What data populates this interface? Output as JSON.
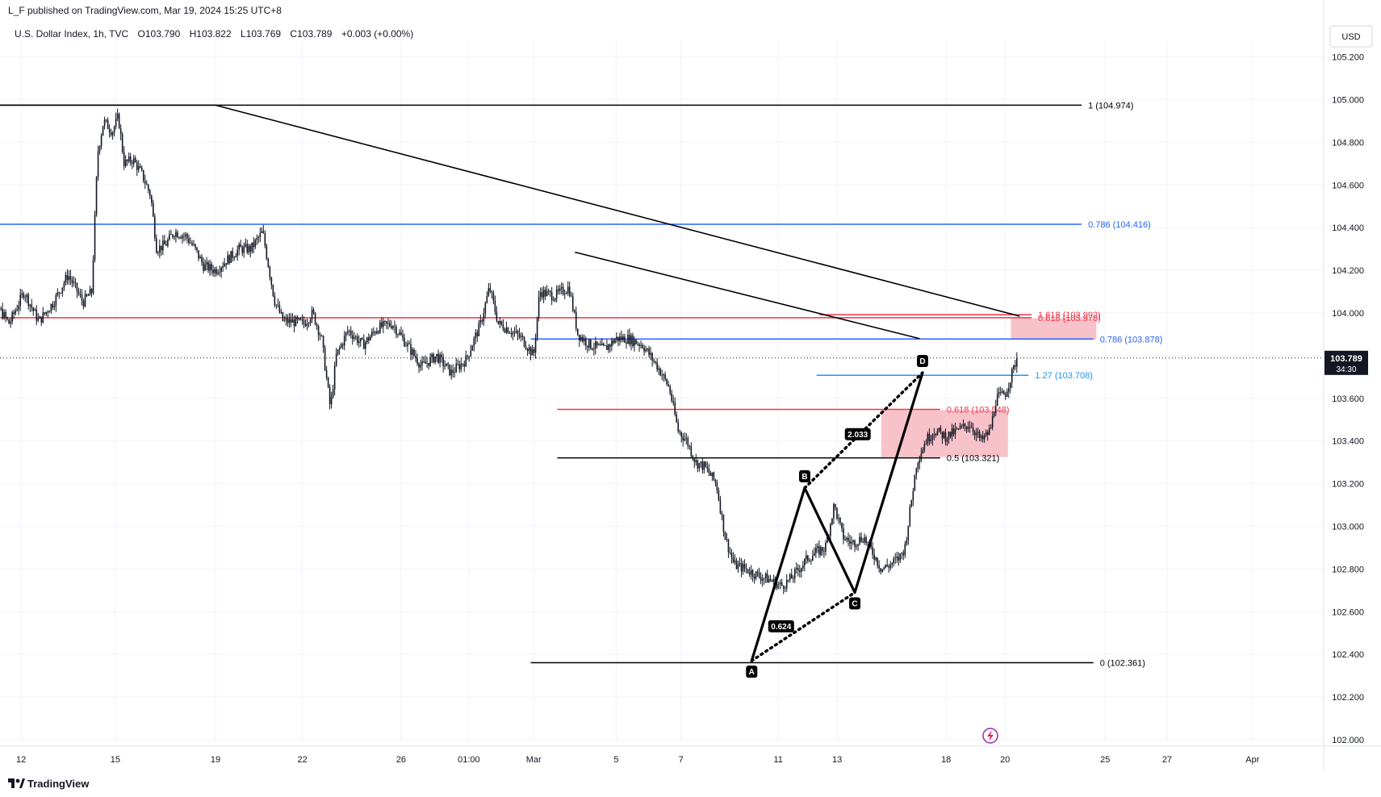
{
  "header": {
    "published_by": "L_F published on TradingView.com, Mar 19, 2024 15:25 UTC+8",
    "symbol_line": "U.S. Dollar Index, 1h, TVC",
    "ohlc": {
      "open_label": "O",
      "open": "103.790",
      "high_label": "H",
      "high": "103.822",
      "low_label": "L",
      "low": "103.769",
      "close_label": "C",
      "close": "103.789",
      "change": "+0.003 (+0.00%)"
    }
  },
  "currency_button": "USD",
  "footer": {
    "brand": "TradingView"
  },
  "colors": {
    "black_line": "#000000",
    "blue_line": "#2962ff",
    "light_blue_line": "#2196f3",
    "red_line": "#f23645",
    "zone_fill": "#f7b7c2",
    "candle": "#131722",
    "grid": "#f0f3fa"
  },
  "chart_data": {
    "type": "candlestick",
    "ylim": [
      101.95,
      105.25
    ],
    "y_ticks": [
      "105.200",
      "105.000",
      "104.800",
      "104.600",
      "104.400",
      "104.200",
      "104.000",
      "103.800",
      "103.600",
      "103.400",
      "103.200",
      "103.000",
      "102.800",
      "102.600",
      "102.400",
      "102.200",
      "102.000"
    ],
    "x_ticks": [
      "12",
      "15",
      "19",
      "22",
      "26",
      "01:00",
      "Mar",
      "5",
      "7",
      "11",
      "13",
      "18",
      "20",
      "25",
      "27",
      "Apr"
    ],
    "x_tick_days": [
      -6.6,
      -3.4,
      0,
      2.95,
      6.3,
      8.6,
      10.8,
      13.6,
      15.8,
      19.1,
      21.1,
      24.8,
      26.8,
      30.2,
      32.3,
      35.2
    ],
    "last_price": "103.789",
    "countdown": "34:30",
    "price_path": [
      [
        -8.0,
        104.2
      ],
      [
        -7.5,
        104.05
      ],
      [
        -7.0,
        103.95
      ],
      [
        -6.5,
        104.1
      ],
      [
        -6.0,
        103.96
      ],
      [
        -5.5,
        104.05
      ],
      [
        -5.0,
        104.18
      ],
      [
        -4.5,
        104.05
      ],
      [
        -4.2,
        104.1
      ],
      [
        -4.0,
        104.75
      ],
      [
        -3.8,
        104.9
      ],
      [
        -3.5,
        104.85
      ],
      [
        -3.3,
        104.92
      ],
      [
        -3.1,
        104.7
      ],
      [
        -2.8,
        104.72
      ],
      [
        -2.5,
        104.65
      ],
      [
        -2.2,
        104.55
      ],
      [
        -2.0,
        104.3
      ],
      [
        -1.7,
        104.32
      ],
      [
        -1.4,
        104.38
      ],
      [
        -1.0,
        104.36
      ],
      [
        -0.7,
        104.3
      ],
      [
        -0.4,
        104.22
      ],
      [
        0.0,
        104.2
      ],
      [
        0.4,
        104.25
      ],
      [
        0.8,
        104.3
      ],
      [
        1.2,
        104.3
      ],
      [
        1.6,
        104.38
      ],
      [
        2.0,
        104.06
      ],
      [
        2.3,
        103.96
      ],
      [
        2.6,
        103.96
      ],
      [
        3.0,
        103.95
      ],
      [
        3.3,
        104.0
      ],
      [
        3.6,
        103.88
      ],
      [
        3.9,
        103.55
      ],
      [
        4.1,
        103.8
      ],
      [
        4.5,
        103.92
      ],
      [
        5.0,
        103.85
      ],
      [
        5.5,
        103.93
      ],
      [
        6.0,
        103.95
      ],
      [
        6.5,
        103.85
      ],
      [
        7.0,
        103.75
      ],
      [
        7.5,
        103.8
      ],
      [
        8.0,
        103.72
      ],
      [
        8.5,
        103.78
      ],
      [
        9.0,
        103.95
      ],
      [
        9.3,
        104.12
      ],
      [
        9.6,
        103.95
      ],
      [
        10.0,
        103.92
      ],
      [
        10.4,
        103.88
      ],
      [
        10.8,
        103.8
      ],
      [
        11.0,
        104.1
      ],
      [
        11.5,
        104.08
      ],
      [
        12.0,
        104.12
      ],
      [
        12.3,
        103.9
      ],
      [
        12.7,
        103.85
      ],
      [
        13.2,
        103.83
      ],
      [
        13.6,
        103.88
      ],
      [
        14.0,
        103.88
      ],
      [
        14.5,
        103.85
      ],
      [
        15.0,
        103.75
      ],
      [
        15.4,
        103.65
      ],
      [
        15.7,
        103.45
      ],
      [
        16.0,
        103.4
      ],
      [
        16.3,
        103.3
      ],
      [
        16.6,
        103.28
      ],
      [
        17.0,
        103.2
      ],
      [
        17.3,
        102.95
      ],
      [
        17.6,
        102.82
      ],
      [
        18.0,
        102.8
      ],
      [
        18.4,
        102.77
      ],
      [
        18.8,
        102.75
      ],
      [
        19.2,
        102.72
      ],
      [
        19.5,
        102.75
      ],
      [
        19.8,
        102.8
      ],
      [
        20.1,
        102.85
      ],
      [
        20.4,
        102.88
      ],
      [
        20.7,
        102.9
      ],
      [
        21.0,
        103.1
      ],
      [
        21.3,
        102.95
      ],
      [
        21.6,
        102.92
      ],
      [
        22.0,
        102.95
      ],
      [
        22.3,
        102.88
      ],
      [
        22.6,
        102.8
      ],
      [
        22.9,
        102.82
      ],
      [
        23.2,
        102.85
      ],
      [
        23.4,
        102.9
      ],
      [
        23.6,
        103.1
      ],
      [
        23.8,
        103.3
      ],
      [
        24.1,
        103.4
      ],
      [
        24.4,
        103.45
      ],
      [
        24.8,
        103.42
      ],
      [
        25.2,
        103.45
      ],
      [
        25.6,
        103.48
      ],
      [
        26.0,
        103.4
      ],
      [
        26.3,
        103.45
      ],
      [
        26.5,
        103.6
      ],
      [
        26.8,
        103.62
      ],
      [
        27.0,
        103.7
      ],
      [
        27.2,
        103.79
      ]
    ],
    "levels": [
      {
        "label": "1 (104.974)",
        "price": 104.974,
        "x_start": -8.6,
        "x_end": 29.4,
        "color": "black"
      },
      {
        "label": "0.786 (104.416)",
        "price": 104.416,
        "x_start": -8.6,
        "x_end": 29.4,
        "color": "blue"
      },
      {
        "label": "0 (102.361)",
        "price": 102.361,
        "x_start": 10.7,
        "x_end": 29.8,
        "color": "black"
      },
      {
        "label": "0.786 (103.878)",
        "price": 103.878,
        "x_start": 10.7,
        "x_end": 29.8,
        "color": "blue"
      },
      {
        "label": "0.618 (103.548)",
        "price": 103.548,
        "x_start": 11.6,
        "x_end": 24.6,
        "color": "red"
      },
      {
        "label": "0.5 (103.321)",
        "price": 103.321,
        "x_start": 11.6,
        "x_end": 24.6,
        "color": "black"
      },
      {
        "label": "1.27 (103.708)",
        "price": 103.708,
        "x_start": 20.4,
        "x_end": 27.6,
        "color": "lightblue"
      },
      {
        "label": "1.618 (103.992)",
        "price": 103.992,
        "x_start": 20.5,
        "x_end": 27.7,
        "color": "red"
      },
      {
        "label": "0.618 (103.978)",
        "price": 103.978,
        "x_start": -8.6,
        "x_end": 27.7,
        "color": "red"
      }
    ],
    "bottom_line_price": 101.97,
    "trendlines": [
      {
        "from": [
          -8.6,
          104.974
        ],
        "to": [
          0.0,
          104.974
        ]
      },
      {
        "from": [
          0.0,
          104.974
        ],
        "to": [
          27.3,
          103.985
        ]
      },
      {
        "from": [
          12.2,
          104.285
        ],
        "to": [
          23.9,
          103.88
        ]
      }
    ],
    "zones": [
      {
        "x_start": 27.0,
        "x_end": 29.9,
        "y_top": 103.975,
        "y_bottom": 103.875
      },
      {
        "x_start": 22.6,
        "x_end": 26.9,
        "y_top": 103.545,
        "y_bottom": 103.325
      }
    ],
    "pattern": {
      "points": [
        {
          "label": "A",
          "x": 18.2,
          "y": 102.37
        },
        {
          "label": "B",
          "x": 20.0,
          "y": 103.18
        },
        {
          "label": "C",
          "x": 21.7,
          "y": 102.69
        },
        {
          "label": "D",
          "x": 24.0,
          "y": 103.72
        }
      ],
      "ratios": [
        {
          "label": "0.624",
          "x": 19.2,
          "y": 102.53
        },
        {
          "label": "2.033",
          "x": 21.8,
          "y": 103.43
        }
      ]
    }
  }
}
